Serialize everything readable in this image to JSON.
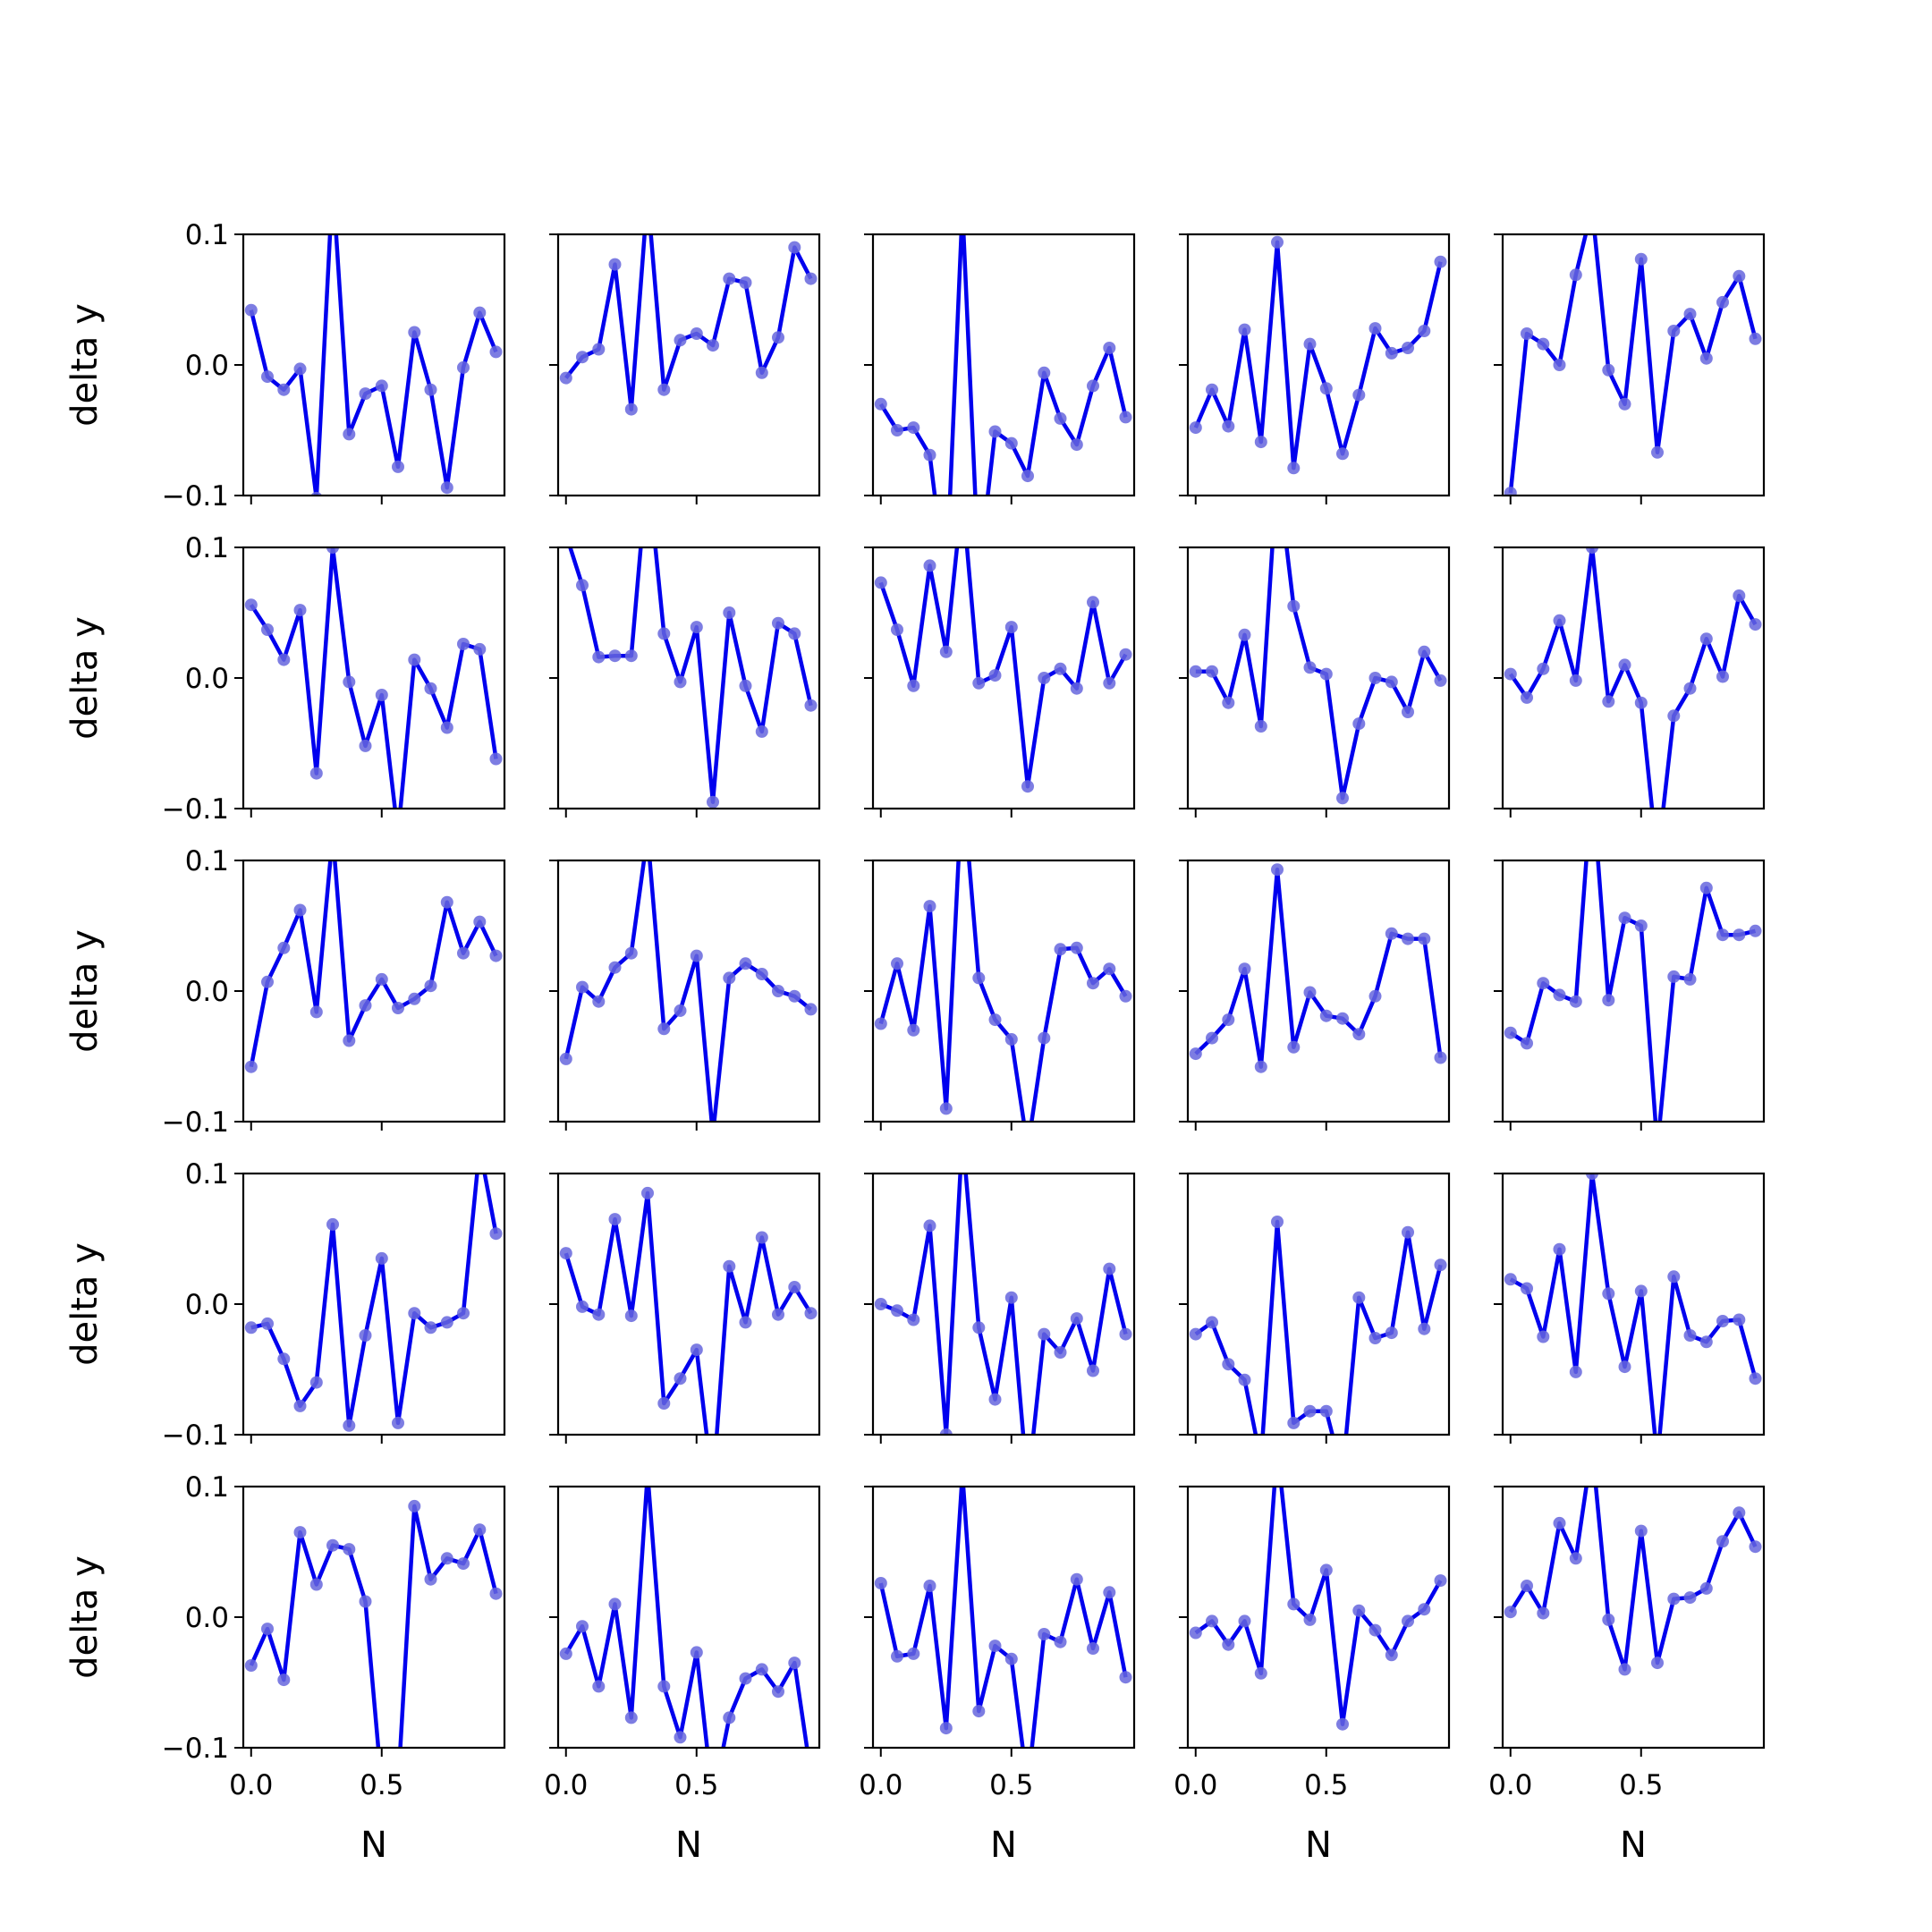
{
  "chart_data": {
    "type": "line",
    "layout": "5x5 small multiples",
    "x": [
      0.0,
      0.0625,
      0.125,
      0.1875,
      0.25,
      0.3125,
      0.375,
      0.4375,
      0.5,
      0.5625,
      0.625,
      0.6875,
      0.75,
      0.8125,
      0.875,
      0.9375
    ],
    "xlabel": "N",
    "ylabel": "delta y",
    "xlim": [
      -0.03,
      0.97
    ],
    "ylim": [
      -0.1,
      0.1
    ],
    "xticks": [
      0.0,
      0.5
    ],
    "xtick_labels": [
      "0.0",
      "0.5"
    ],
    "yticks": [
      -0.1,
      0.0,
      0.1
    ],
    "ytick_labels": [
      "−0.1",
      "0.0",
      "0.1"
    ],
    "line_color": "#0000ee",
    "marker_color": "#6666dd",
    "grid": false,
    "panels": [
      [
        0.042,
        -0.009,
        -0.019,
        -0.003,
        -0.102,
        0.14,
        -0.053,
        -0.022,
        -0.016,
        -0.078,
        0.025,
        -0.019,
        -0.094,
        -0.002,
        0.04,
        0.01
      ],
      [
        -0.01,
        0.006,
        0.012,
        0.077,
        -0.034,
        0.13,
        -0.019,
        0.019,
        0.024,
        0.015,
        0.066,
        0.063,
        -0.006,
        0.021,
        0.09,
        0.066
      ],
      [
        -0.03,
        -0.05,
        -0.048,
        -0.069,
        -0.17,
        0.12,
        -0.16,
        -0.051,
        -0.06,
        -0.085,
        -0.006,
        -0.041,
        -0.061,
        -0.016,
        0.013,
        -0.04
      ],
      [
        -0.048,
        -0.019,
        -0.047,
        0.027,
        -0.059,
        0.094,
        -0.079,
        0.016,
        -0.018,
        -0.068,
        -0.023,
        0.028,
        0.009,
        0.013,
        0.026,
        0.079
      ],
      [
        -0.098,
        0.024,
        0.016,
        0.0,
        0.069,
        0.12,
        -0.004,
        -0.03,
        0.081,
        -0.067,
        0.026,
        0.039,
        0.005,
        0.048,
        0.068,
        0.02
      ],
      [
        0.056,
        0.037,
        0.014,
        0.052,
        -0.073,
        0.1,
        -0.003,
        -0.052,
        -0.013,
        -0.12,
        0.014,
        -0.008,
        -0.038,
        0.026,
        0.022,
        -0.062
      ],
      [
        0.11,
        0.071,
        0.016,
        0.017,
        0.017,
        0.16,
        0.034,
        -0.003,
        0.039,
        -0.095,
        0.05,
        -0.006,
        -0.041,
        0.042,
        0.034,
        -0.021
      ],
      [
        0.073,
        0.037,
        -0.006,
        0.086,
        0.02,
        0.14,
        -0.004,
        0.002,
        0.039,
        -0.083,
        0.0,
        0.007,
        -0.008,
        0.058,
        -0.004,
        0.018
      ],
      [
        0.005,
        0.005,
        -0.019,
        0.033,
        -0.037,
        0.16,
        0.055,
        0.008,
        0.003,
        -0.092,
        -0.035,
        0.0,
        -0.003,
        -0.026,
        0.02,
        -0.002
      ],
      [
        0.003,
        -0.015,
        0.007,
        0.044,
        -0.002,
        0.1,
        -0.018,
        0.01,
        -0.019,
        -0.14,
        -0.029,
        -0.008,
        0.03,
        0.001,
        0.063,
        0.041
      ],
      [
        -0.058,
        0.007,
        0.033,
        0.062,
        -0.016,
        0.12,
        -0.038,
        -0.011,
        0.009,
        -0.013,
        -0.006,
        0.004,
        0.068,
        0.029,
        0.053,
        0.027
      ],
      [
        -0.052,
        0.003,
        -0.008,
        0.018,
        0.029,
        0.12,
        -0.029,
        -0.015,
        0.027,
        -0.11,
        0.01,
        0.021,
        0.013,
        0.0,
        -0.004,
        -0.014
      ],
      [
        -0.025,
        0.021,
        -0.03,
        0.065,
        -0.09,
        0.16,
        0.01,
        -0.022,
        -0.037,
        -0.12,
        -0.036,
        0.032,
        0.033,
        0.006,
        0.017,
        -0.004
      ],
      [
        -0.048,
        -0.036,
        -0.022,
        0.017,
        -0.058,
        0.093,
        -0.043,
        -0.001,
        -0.019,
        -0.021,
        -0.033,
        -0.004,
        0.044,
        0.04,
        0.04,
        -0.051
      ],
      [
        -0.032,
        -0.04,
        0.006,
        -0.003,
        -0.008,
        0.16,
        -0.007,
        0.056,
        0.05,
        -0.12,
        0.011,
        0.009,
        0.079,
        0.043,
        0.043,
        0.046
      ],
      [
        -0.018,
        -0.015,
        -0.042,
        -0.078,
        -0.06,
        0.061,
        -0.093,
        -0.024,
        0.035,
        -0.091,
        -0.007,
        -0.018,
        -0.014,
        -0.007,
        0.12,
        0.054
      ],
      [
        0.039,
        -0.002,
        -0.008,
        0.065,
        -0.009,
        0.085,
        -0.076,
        -0.057,
        -0.035,
        -0.14,
        0.029,
        -0.014,
        0.051,
        -0.008,
        0.013,
        -0.007
      ],
      [
        0.0,
        -0.005,
        -0.012,
        0.06,
        -0.1,
        0.13,
        -0.018,
        -0.073,
        0.005,
        -0.14,
        -0.023,
        -0.037,
        -0.011,
        -0.051,
        0.027,
        -0.023
      ],
      [
        -0.023,
        -0.014,
        -0.046,
        -0.058,
        -0.12,
        0.063,
        -0.091,
        -0.082,
        -0.082,
        -0.13,
        0.005,
        -0.026,
        -0.022,
        0.055,
        -0.019,
        0.03
      ],
      [
        0.019,
        0.012,
        -0.025,
        0.042,
        -0.052,
        0.1,
        0.008,
        -0.048,
        0.01,
        -0.12,
        0.021,
        -0.024,
        -0.029,
        -0.013,
        -0.012,
        -0.057
      ],
      [
        -0.037,
        -0.009,
        -0.048,
        0.065,
        0.025,
        0.055,
        0.052,
        0.012,
        -0.13,
        -0.13,
        0.085,
        0.029,
        0.045,
        0.041,
        0.067,
        0.018
      ],
      [
        -0.028,
        -0.007,
        -0.053,
        0.01,
        -0.077,
        0.11,
        -0.053,
        -0.092,
        -0.027,
        -0.14,
        -0.077,
        -0.047,
        -0.04,
        -0.057,
        -0.035,
        -0.12
      ],
      [
        0.026,
        -0.03,
        -0.028,
        0.024,
        -0.085,
        0.11,
        -0.072,
        -0.022,
        -0.032,
        -0.13,
        -0.013,
        -0.019,
        0.029,
        -0.024,
        0.019,
        -0.046
      ],
      [
        -0.012,
        -0.003,
        -0.021,
        -0.003,
        -0.043,
        0.13,
        0.01,
        -0.002,
        0.036,
        -0.082,
        0.005,
        -0.01,
        -0.029,
        -0.003,
        0.006,
        0.028
      ],
      [
        0.004,
        0.024,
        0.003,
        0.072,
        0.045,
        0.13,
        -0.002,
        -0.04,
        0.066,
        -0.035,
        0.014,
        0.015,
        0.022,
        0.058,
        0.08,
        0.054
      ]
    ]
  }
}
